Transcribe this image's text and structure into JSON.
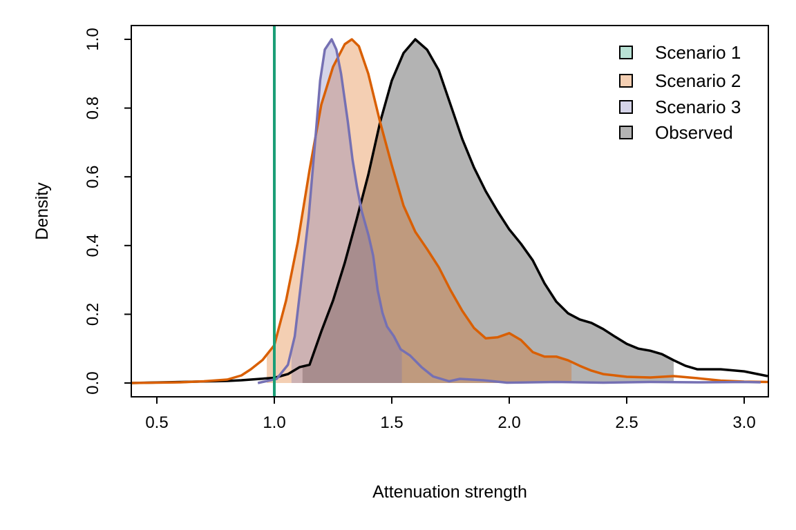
{
  "chart_data": {
    "type": "area",
    "title": "",
    "xlabel": "Attenuation strength",
    "ylabel": "Density",
    "xlim": [
      0.39,
      3.1
    ],
    "ylim": [
      0,
      1.0
    ],
    "x_ticks": [
      "0.5",
      "1.0",
      "1.5",
      "2.0",
      "2.5",
      "3.0"
    ],
    "y_ticks": [
      "0.0",
      "0.2",
      "0.4",
      "0.6",
      "0.8",
      "1.0"
    ],
    "legend_position": "top-right",
    "grid": false,
    "series": [
      {
        "name": "Scenario 1",
        "kind": "vline",
        "x_value": 1.0,
        "line_color": "#1b9e77",
        "fill_color": "#b9e2d5"
      },
      {
        "name": "Scenario 2",
        "kind": "density",
        "line_color": "#d95f02",
        "fill_color": "#d95f02",
        "fill_opacity": 0.3,
        "shade_range": [
          0.968,
          2.265
        ],
        "points": [
          [
            0.39,
            0.0
          ],
          [
            0.5,
            0.001
          ],
          [
            0.6,
            0.002
          ],
          [
            0.7,
            0.005
          ],
          [
            0.8,
            0.01
          ],
          [
            0.86,
            0.022
          ],
          [
            0.9,
            0.04
          ],
          [
            0.95,
            0.067
          ],
          [
            1.0,
            0.11
          ],
          [
            1.05,
            0.24
          ],
          [
            1.1,
            0.41
          ],
          [
            1.15,
            0.62
          ],
          [
            1.2,
            0.81
          ],
          [
            1.25,
            0.92
          ],
          [
            1.3,
            0.986
          ],
          [
            1.33,
            1.0
          ],
          [
            1.36,
            0.98
          ],
          [
            1.4,
            0.9
          ],
          [
            1.45,
            0.76
          ],
          [
            1.5,
            0.634
          ],
          [
            1.55,
            0.516
          ],
          [
            1.6,
            0.44
          ],
          [
            1.65,
            0.39
          ],
          [
            1.7,
            0.337
          ],
          [
            1.75,
            0.27
          ],
          [
            1.8,
            0.21
          ],
          [
            1.85,
            0.16
          ],
          [
            1.9,
            0.13
          ],
          [
            1.95,
            0.133
          ],
          [
            2.0,
            0.145
          ],
          [
            2.05,
            0.125
          ],
          [
            2.1,
            0.09
          ],
          [
            2.15,
            0.077
          ],
          [
            2.2,
            0.077
          ],
          [
            2.25,
            0.066
          ],
          [
            2.3,
            0.05
          ],
          [
            2.35,
            0.036
          ],
          [
            2.4,
            0.026
          ],
          [
            2.5,
            0.018
          ],
          [
            2.6,
            0.016
          ],
          [
            2.7,
            0.02
          ],
          [
            2.8,
            0.014
          ],
          [
            2.9,
            0.007
          ],
          [
            3.0,
            0.004
          ],
          [
            3.1,
            0.003
          ]
        ]
      },
      {
        "name": "Scenario 3",
        "kind": "density",
        "line_color": "#7570b3",
        "fill_color": "#7570b3",
        "fill_opacity": 0.3,
        "shade_range": [
          1.073,
          1.543
        ],
        "points": [
          [
            0.93,
            0.0
          ],
          [
            1.01,
            0.012
          ],
          [
            1.058,
            0.053
          ],
          [
            1.087,
            0.136
          ],
          [
            1.117,
            0.31
          ],
          [
            1.146,
            0.48
          ],
          [
            1.176,
            0.72
          ],
          [
            1.195,
            0.88
          ],
          [
            1.215,
            0.97
          ],
          [
            1.244,
            1.0
          ],
          [
            1.264,
            0.97
          ],
          [
            1.284,
            0.9
          ],
          [
            1.313,
            0.76
          ],
          [
            1.333,
            0.65
          ],
          [
            1.352,
            0.57
          ],
          [
            1.372,
            0.5
          ],
          [
            1.401,
            0.43
          ],
          [
            1.421,
            0.37
          ],
          [
            1.44,
            0.27
          ],
          [
            1.46,
            0.205
          ],
          [
            1.48,
            0.164
          ],
          [
            1.509,
            0.136
          ],
          [
            1.538,
            0.098
          ],
          [
            1.578,
            0.08
          ],
          [
            1.627,
            0.046
          ],
          [
            1.676,
            0.019
          ],
          [
            1.744,
            0.005
          ],
          [
            1.79,
            0.012
          ],
          [
            1.89,
            0.008
          ],
          [
            1.99,
            0.001
          ],
          [
            2.2,
            0.003
          ],
          [
            2.4,
            0.001
          ],
          [
            2.6,
            0.003
          ],
          [
            2.8,
            0.002
          ],
          [
            3.0,
            0.003
          ],
          [
            3.07,
            0.002
          ]
        ]
      },
      {
        "name": "Observed",
        "kind": "density",
        "line_color": "#000000",
        "fill_color": "#b3b3b3",
        "fill_opacity": 1.0,
        "shade_range": [
          1.12,
          2.7
        ],
        "points": [
          [
            0.39,
            0.0
          ],
          [
            0.6,
            0.003
          ],
          [
            0.8,
            0.006
          ],
          [
            0.86,
            0.008
          ],
          [
            1.0,
            0.015
          ],
          [
            1.058,
            0.026
          ],
          [
            1.107,
            0.046
          ],
          [
            1.15,
            0.053
          ],
          [
            1.2,
            0.15
          ],
          [
            1.25,
            0.24
          ],
          [
            1.3,
            0.35
          ],
          [
            1.35,
            0.475
          ],
          [
            1.4,
            0.606
          ],
          [
            1.45,
            0.758
          ],
          [
            1.5,
            0.88
          ],
          [
            1.55,
            0.96
          ],
          [
            1.6,
            1.0
          ],
          [
            1.65,
            0.97
          ],
          [
            1.7,
            0.91
          ],
          [
            1.75,
            0.81
          ],
          [
            1.8,
            0.71
          ],
          [
            1.85,
            0.627
          ],
          [
            1.9,
            0.558
          ],
          [
            1.95,
            0.5
          ],
          [
            2.0,
            0.447
          ],
          [
            2.05,
            0.405
          ],
          [
            2.1,
            0.357
          ],
          [
            2.15,
            0.29
          ],
          [
            2.2,
            0.237
          ],
          [
            2.25,
            0.203
          ],
          [
            2.3,
            0.185
          ],
          [
            2.35,
            0.175
          ],
          [
            2.4,
            0.157
          ],
          [
            2.45,
            0.135
          ],
          [
            2.5,
            0.114
          ],
          [
            2.55,
            0.1
          ],
          [
            2.6,
            0.094
          ],
          [
            2.65,
            0.084
          ],
          [
            2.7,
            0.066
          ],
          [
            2.75,
            0.05
          ],
          [
            2.8,
            0.04
          ],
          [
            2.9,
            0.04
          ],
          [
            3.0,
            0.034
          ],
          [
            3.1,
            0.02
          ]
        ]
      }
    ]
  }
}
